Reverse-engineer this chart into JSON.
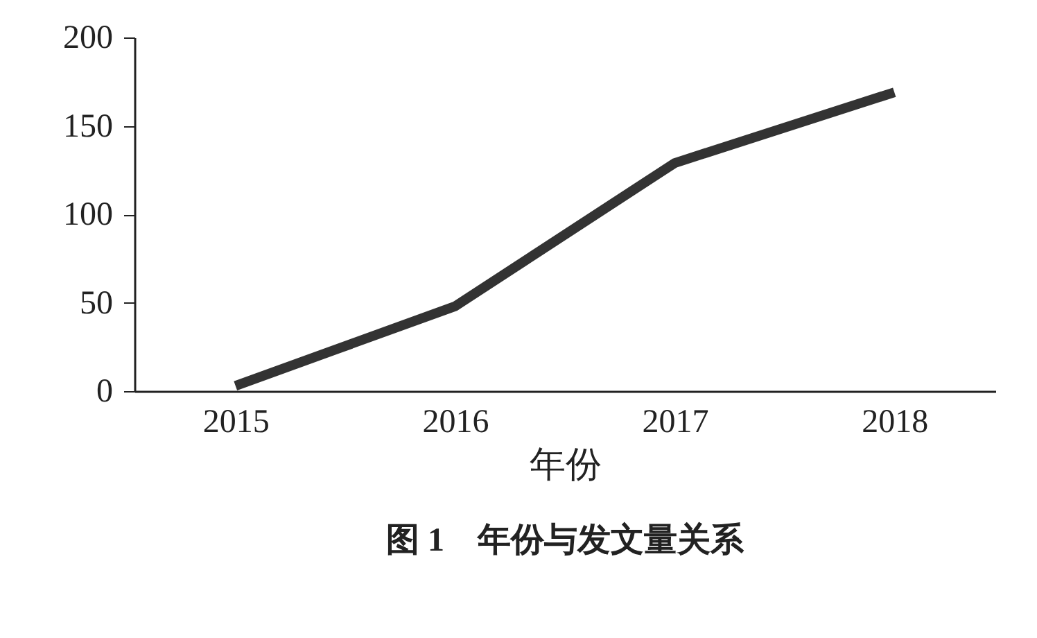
{
  "chart_data": {
    "type": "line",
    "title": "图 1　年份与发文量关系",
    "xlabel": "年份",
    "categories": [
      "2015",
      "2016",
      "2017",
      "2018"
    ],
    "series": [
      {
        "color": "#333333",
        "values": [
          3,
          48,
          129,
          169
        ]
      }
    ],
    "ylim": [
      0,
      200
    ],
    "yticks": [
      0,
      50,
      100,
      150,
      200
    ],
    "grid": false,
    "legend": false,
    "marker": "none",
    "line_style": "solid"
  }
}
